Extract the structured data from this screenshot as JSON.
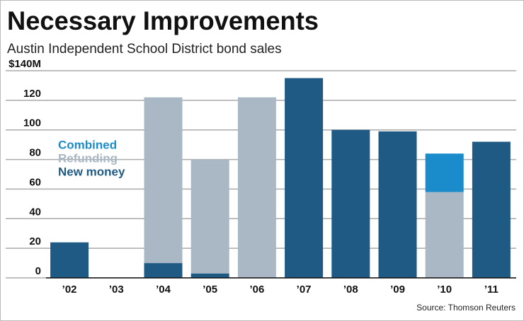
{
  "chart_data": {
    "type": "stacked_bar",
    "title": "Necessary Improvements",
    "subtitle": "Austin Independent School District bond sales",
    "source": "Source: Thomson Reuters",
    "categories": [
      "’02",
      "’03",
      "’04",
      "’05",
      "’06",
      "’07",
      "’08",
      "’09",
      "’10",
      "’11"
    ],
    "series": [
      {
        "name": "New money",
        "color": "#1f5a84",
        "values": [
          24,
          0,
          10,
          3,
          0,
          135,
          100,
          99,
          0,
          92
        ]
      },
      {
        "name": "Refunding",
        "color": "#a9b8c4",
        "values": [
          0,
          0,
          112,
          77,
          122,
          0,
          0,
          0,
          58,
          0
        ]
      },
      {
        "name": "Combined",
        "color": "#1a8ccc",
        "values": [
          0,
          0,
          0,
          0,
          0,
          0,
          0,
          0,
          26,
          0
        ]
      }
    ],
    "ylim": [
      0,
      140
    ],
    "yticks": [
      0,
      20,
      40,
      60,
      80,
      100,
      120,
      {
        "value": 140,
        "label": "$140M"
      }
    ],
    "grid": true
  }
}
